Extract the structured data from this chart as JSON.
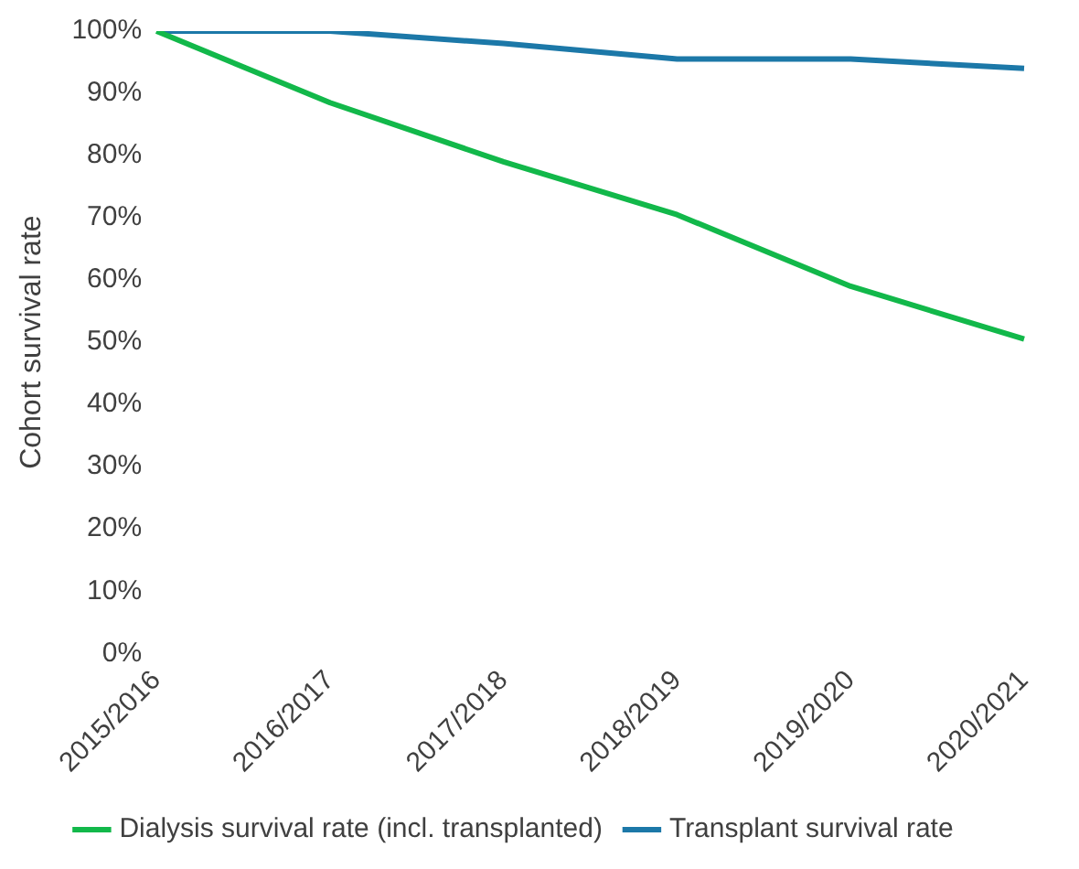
{
  "chart_data": {
    "type": "line",
    "ylabel": "Cohort survival rate",
    "categories": [
      "2015/2016",
      "2016/2017",
      "2017/2018",
      "2018/2019",
      "2019/2020",
      "2020/2021"
    ],
    "series": [
      {
        "name": "Dialysis survival rate (incl. transplanted)",
        "color": "#12b84a",
        "values": [
          100,
          88.5,
          79,
          70.5,
          59,
          50.5
        ]
      },
      {
        "name": "Transplant survival rate",
        "color": "#1c78a8",
        "values": [
          100,
          100,
          98,
          95.5,
          95.5,
          94
        ]
      }
    ],
    "ylim": [
      0,
      100
    ],
    "yticks": [
      {
        "value": 0,
        "label": "0%"
      },
      {
        "value": 10,
        "label": "10%"
      },
      {
        "value": 20,
        "label": "20%"
      },
      {
        "value": 30,
        "label": "30%"
      },
      {
        "value": 40,
        "label": "40%"
      },
      {
        "value": 50,
        "label": "50%"
      },
      {
        "value": 60,
        "label": "60%"
      },
      {
        "value": 70,
        "label": "70%"
      },
      {
        "value": 80,
        "label": "80%"
      },
      {
        "value": 90,
        "label": "90%"
      },
      {
        "value": 100,
        "label": "100%"
      }
    ],
    "grid": false,
    "legend": "bottom",
    "marker": "none",
    "line_style": "solid"
  }
}
